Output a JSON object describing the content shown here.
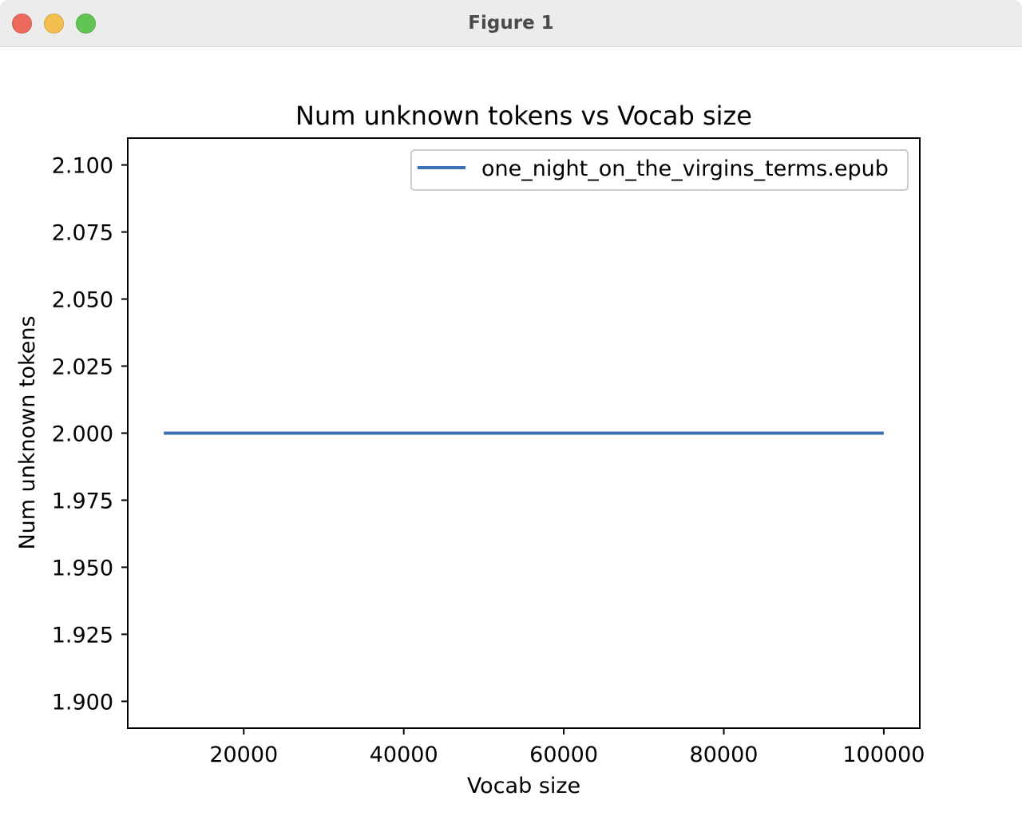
{
  "window": {
    "title": "Figure 1",
    "buttons": {
      "close": "close",
      "minimize": "minimize",
      "zoom": "zoom"
    }
  },
  "chart_data": {
    "type": "line",
    "title": "Num unknown tokens vs Vocab size",
    "xlabel": "Vocab size",
    "ylabel": "Num unknown tokens",
    "xlim": [
      5500,
      104500
    ],
    "ylim": [
      1.89,
      2.11
    ],
    "xticks": [
      20000,
      40000,
      60000,
      80000,
      100000
    ],
    "xtick_labels": [
      "20000",
      "40000",
      "60000",
      "80000",
      "100000"
    ],
    "yticks": [
      1.9,
      1.925,
      1.95,
      1.975,
      2.0,
      2.025,
      2.05,
      2.075,
      2.1
    ],
    "ytick_labels": [
      "1.900",
      "1.925",
      "1.950",
      "1.975",
      "2.000",
      "2.025",
      "2.050",
      "2.075",
      "2.100"
    ],
    "grid": false,
    "legend_position": "top-right",
    "series": [
      {
        "name": "one_night_on_the_virgins_terms.epub",
        "color": "#3b70b4",
        "x": [
          10000,
          20000,
          30000,
          40000,
          50000,
          60000,
          70000,
          80000,
          90000,
          100000
        ],
        "y": [
          2,
          2,
          2,
          2,
          2,
          2,
          2,
          2,
          2,
          2
        ]
      }
    ]
  }
}
